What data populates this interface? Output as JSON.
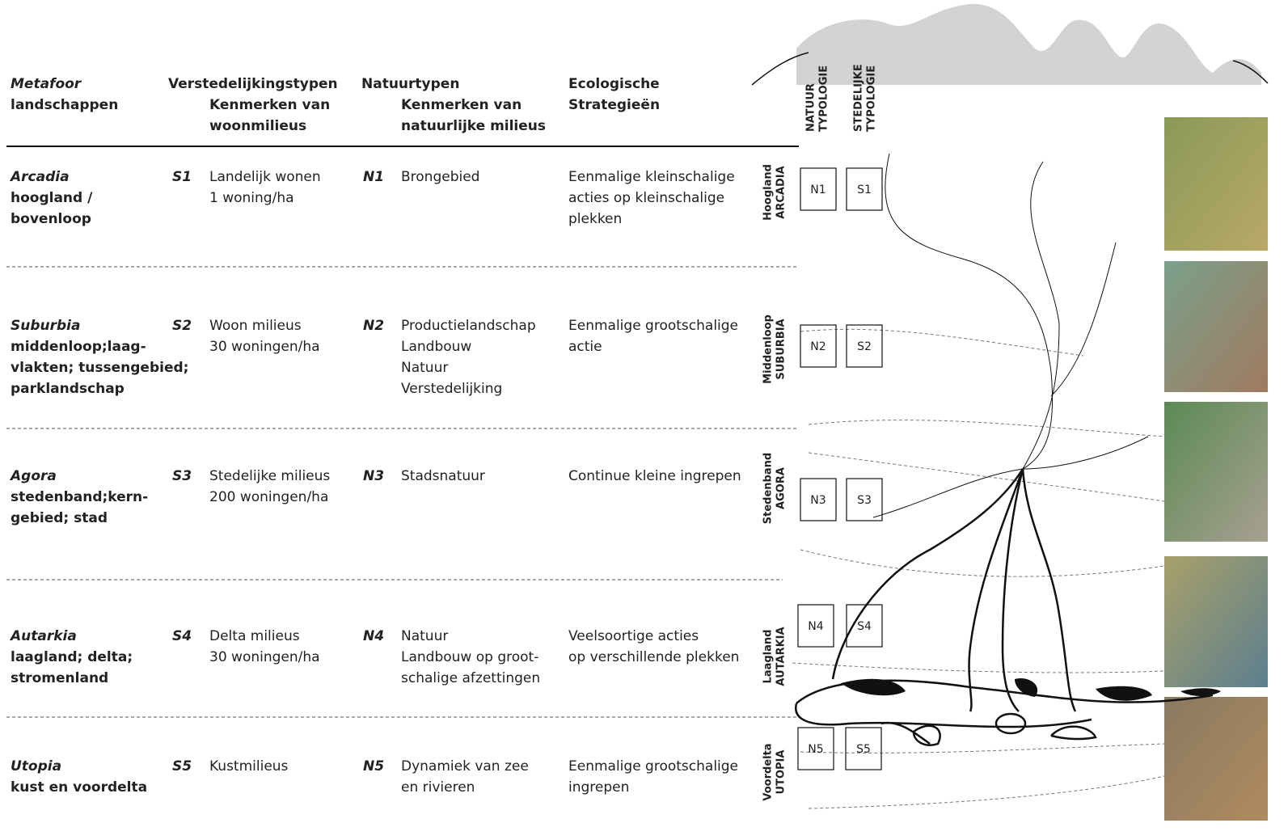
{
  "columns": [
    {
      "title": "Metafoor",
      "subtitle": [
        "landschappen"
      ]
    },
    {
      "title": "Verstedelijkingstypen",
      "subtitle": [
        "Kenmerken van",
        "woonmilieus"
      ]
    },
    {
      "title": "Natuurtypen",
      "subtitle": [
        "Kenmerken van",
        "natuurlijke milieus"
      ]
    },
    {
      "subtitle": [
        "Ecologische",
        "Strategieën"
      ]
    }
  ],
  "rows": [
    {
      "metaphor": "Arcadia",
      "landscape": [
        "hoogland /",
        "bovenloop"
      ],
      "s_code": "S1",
      "s_text": [
        "Landelijk wonen",
        "1 woning/ha"
      ],
      "n_code": "N1",
      "n_text": [
        "Brongebied"
      ],
      "strategy": [
        "Eenmalige kleinschalige",
        "acties op kleinschalige",
        "plekken"
      ]
    },
    {
      "metaphor": "Suburbia",
      "landscape": [
        "middenloop;laag-",
        "vlakten; tussengebied;",
        "parklandschap"
      ],
      "s_code": "S2",
      "s_text": [
        "Woon milieus",
        "30 woningen/ha"
      ],
      "n_code": "N2",
      "n_text": [
        "Productielandschap",
        "Landbouw",
        "Natuur",
        "Verstedelijking"
      ],
      "strategy": [
        "Eenmalige grootschalige",
        "actie"
      ]
    },
    {
      "metaphor": "Agora",
      "landscape": [
        "stedenband;kern-",
        "gebied; stad"
      ],
      "s_code": "S3",
      "s_text": [
        "Stedelijke milieus",
        "200 woningen/ha"
      ],
      "n_code": "N3",
      "n_text": [
        "Stadsnatuur"
      ],
      "strategy": [
        "Continue kleine ingrepen"
      ]
    },
    {
      "metaphor": "Autarkia",
      "landscape": [
        "laagland; delta;",
        "stromenland"
      ],
      "s_code": "S4",
      "s_text": [
        "Delta milieus",
        "30 woningen/ha"
      ],
      "n_code": "N4",
      "n_text": [
        "Natuur",
        "Landbouw op groot-",
        "schalige afzettingen"
      ],
      "strategy": [
        "Veelsoortige acties",
        "op verschillende plekken"
      ]
    },
    {
      "metaphor": "Utopia",
      "landscape": [
        "kust en voordelta"
      ],
      "s_code": "S5",
      "s_text": [
        "Kustmilieus"
      ],
      "n_code": "N5",
      "n_text": [
        "Dynamiek van zee",
        "en rivieren"
      ],
      "strategy": [
        "Eenmalige grootschalige",
        "ingrepen"
      ]
    }
  ],
  "diagram": {
    "typology_labels": [
      {
        "lines": [
          "NATUUR",
          "TYPOLOGIE"
        ],
        "color": "#2aa84a"
      },
      {
        "lines": [
          "STEDELIJKE",
          "TYPOLOGIE"
        ],
        "color": "#d9472b"
      }
    ],
    "zones": [
      {
        "level": "Hoogland",
        "name": "ARCADIA",
        "color": "#2aa84a",
        "n_box": "N1",
        "s_box": "S1"
      },
      {
        "level": "Middenloop",
        "name": "SUBURBIA",
        "color": "#c8902a",
        "n_box": "N2",
        "s_box": "S2"
      },
      {
        "level": "Stedenband",
        "name": "AGORA",
        "color": "#d9472b",
        "n_box": "N3",
        "s_box": "S3"
      },
      {
        "level": "Laagland",
        "name": "AUTARKIA",
        "color": "#8a2f8f",
        "n_box": "N4",
        "s_box": "S4"
      },
      {
        "level": "Voordelta",
        "name": "UTOPIA",
        "color": "#2a8fc8",
        "n_box": "N5",
        "s_box": "S5"
      }
    ]
  },
  "colors": {
    "urban": "#d9472b",
    "nature": "#2aa84a"
  }
}
